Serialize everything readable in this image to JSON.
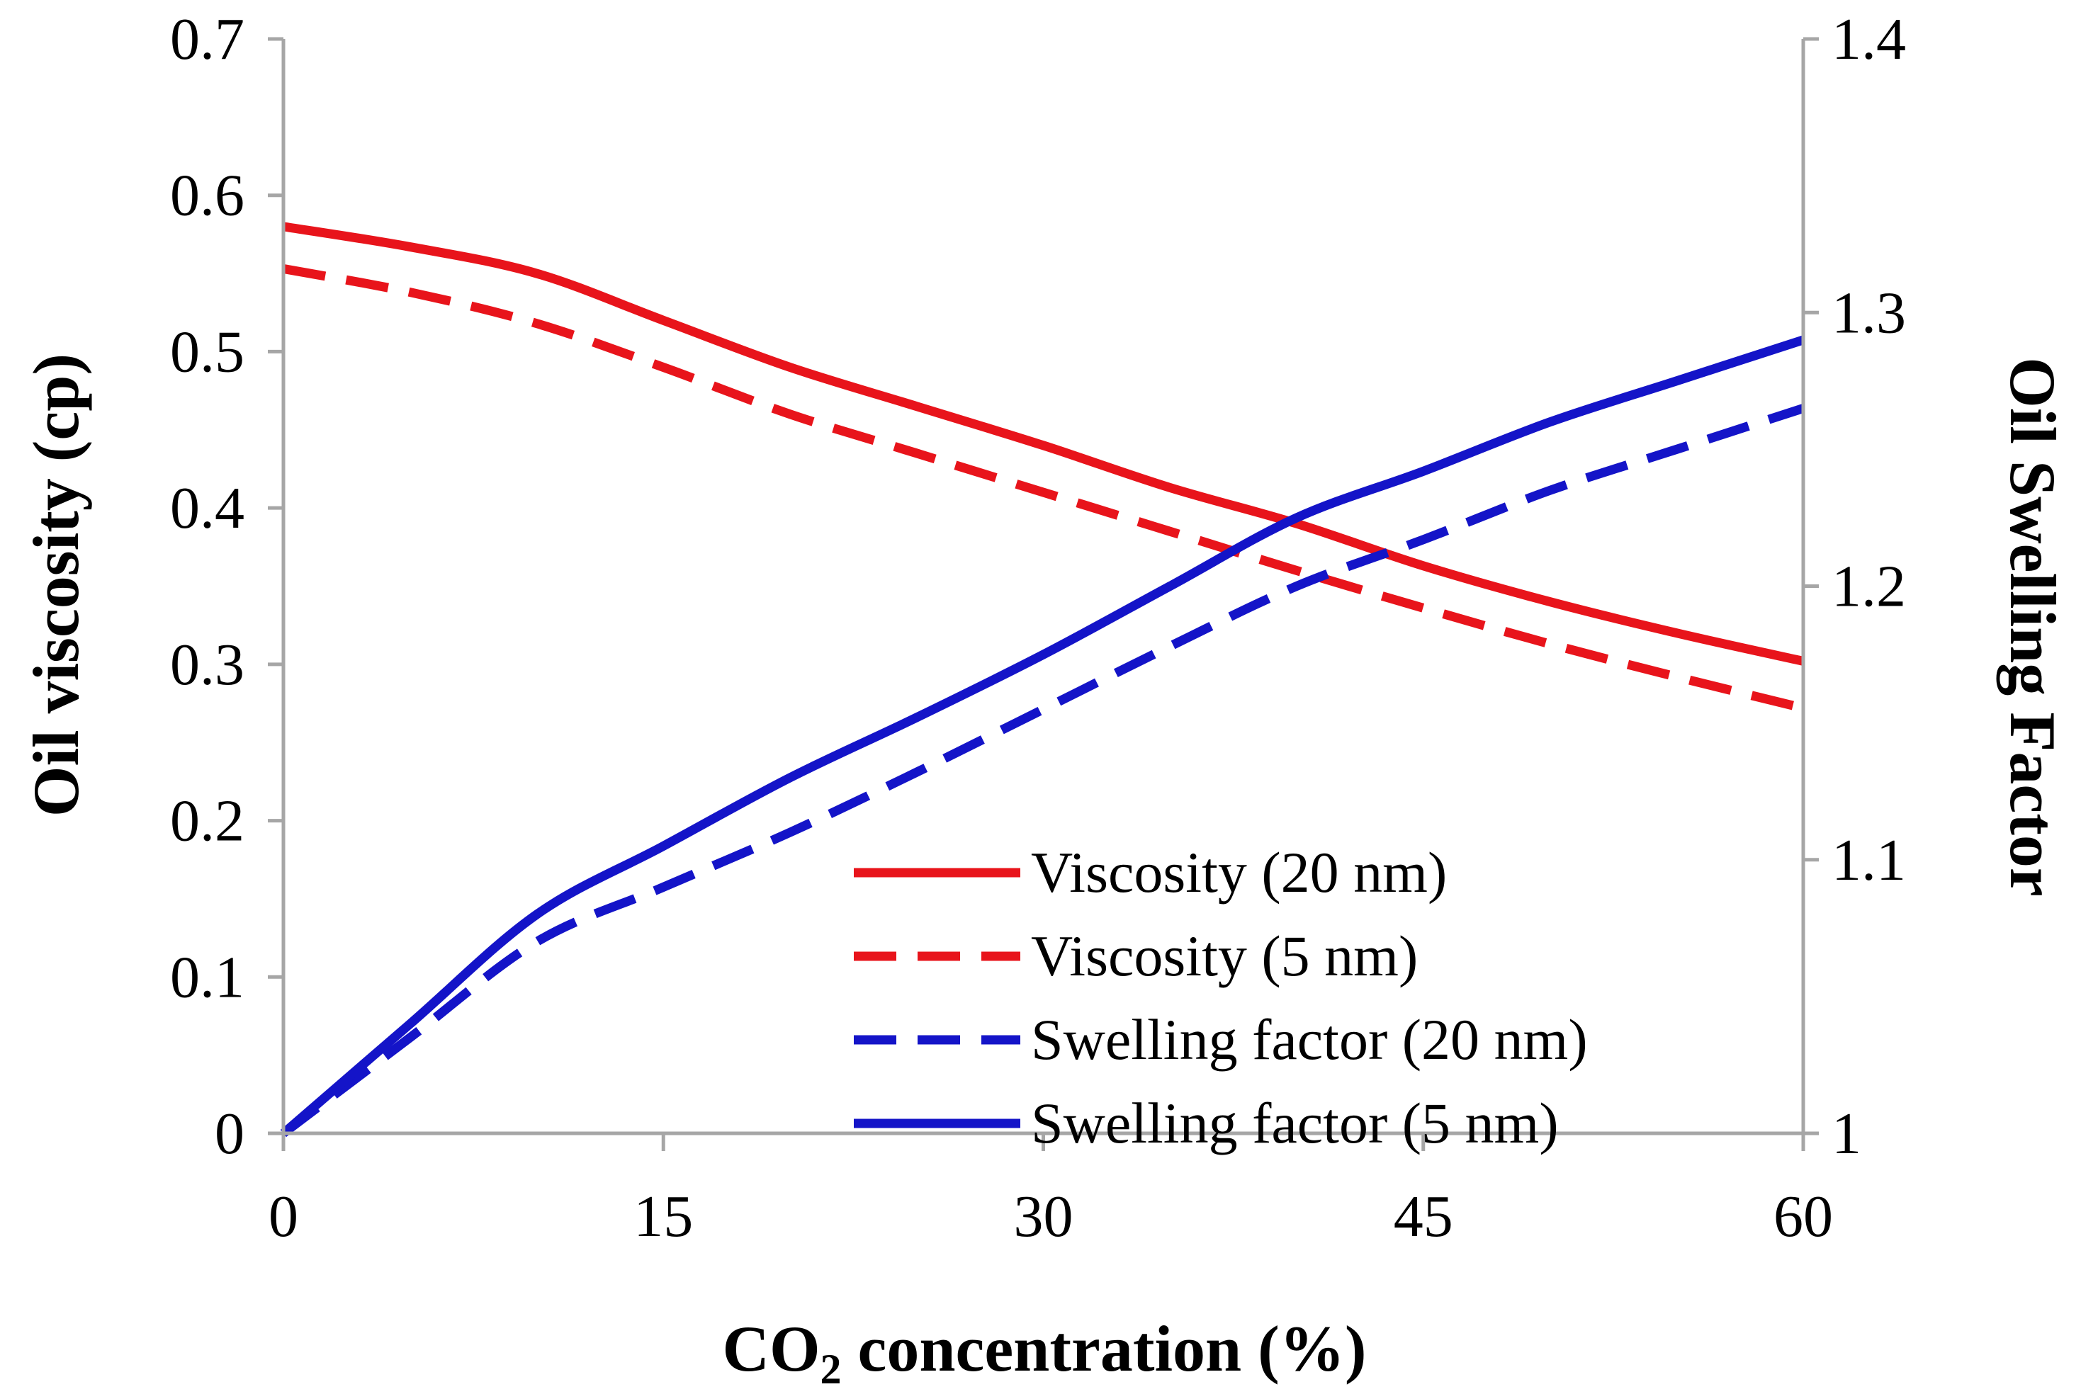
{
  "chart_data": {
    "type": "line",
    "title": "",
    "xlabel": "CO",
    "xlabel_subscript": "2",
    "xlabel_suffix": " concentration (%)",
    "ylabel": "Oil viscosity (cp)",
    "y2label": "Oil Swelling Factor",
    "xlim": [
      0,
      60
    ],
    "ylim": [
      0,
      0.7
    ],
    "y2lim": [
      1,
      1.4
    ],
    "xticks": [
      0,
      15,
      30,
      45,
      60
    ],
    "xtick_labels": [
      "0",
      "15",
      "30",
      "45",
      "60"
    ],
    "yticks": [
      0,
      0.1,
      0.2,
      0.3,
      0.4,
      0.5,
      0.6,
      0.7
    ],
    "ytick_labels": [
      "0",
      "0.1",
      "0.2",
      "0.3",
      "0.4",
      "0.5",
      "0.6",
      "0.7"
    ],
    "y2ticks": [
      1,
      1.1,
      1.2,
      1.3,
      1.4
    ],
    "y2tick_labels": [
      "1",
      "1.1",
      "1.2",
      "1.3",
      "1.4"
    ],
    "grid": false,
    "legend_position": "bottom-right",
    "series": [
      {
        "name": "Viscosity (20 nm)",
        "axis": "left",
        "color": "#e8141b",
        "dash": "solid",
        "x": [
          0,
          5,
          10,
          15,
          20,
          25,
          30,
          35,
          40,
          45,
          50,
          55,
          60
        ],
        "y": [
          0.58,
          0.567,
          0.55,
          0.52,
          0.49,
          0.465,
          0.44,
          0.413,
          0.39,
          0.363,
          0.34,
          0.32,
          0.302
        ]
      },
      {
        "name": "Viscosity (5 nm)",
        "axis": "left",
        "color": "#e8141b",
        "dash": "dashed",
        "x": [
          0,
          5,
          10,
          15,
          20,
          25,
          30,
          35,
          40,
          45,
          50,
          55,
          60
        ],
        "y": [
          0.553,
          0.538,
          0.518,
          0.49,
          0.46,
          0.435,
          0.41,
          0.385,
          0.36,
          0.336,
          0.313,
          0.292,
          0.272
        ]
      },
      {
        "name": "Swelling factor (20 nm)",
        "axis": "right",
        "color": "#1414c8",
        "dash": "dashed",
        "x": [
          0,
          5,
          10,
          15,
          20,
          25,
          30,
          35,
          40,
          45,
          50,
          55,
          60
        ],
        "y": [
          1.0,
          1.035,
          1.07,
          1.09,
          1.11,
          1.132,
          1.155,
          1.178,
          1.2,
          1.217,
          1.235,
          1.25,
          1.265
        ]
      },
      {
        "name": "Swelling factor (5 nm)",
        "axis": "right",
        "color": "#1414c8",
        "dash": "solid",
        "x": [
          0,
          5,
          10,
          15,
          20,
          25,
          30,
          35,
          40,
          45,
          50,
          55,
          60
        ],
        "y": [
          1.0,
          1.04,
          1.08,
          1.105,
          1.13,
          1.152,
          1.175,
          1.2,
          1.225,
          1.242,
          1.26,
          1.275,
          1.29
        ]
      }
    ]
  },
  "colors": {
    "axis": "#a6a6a6",
    "text": "#000000"
  }
}
